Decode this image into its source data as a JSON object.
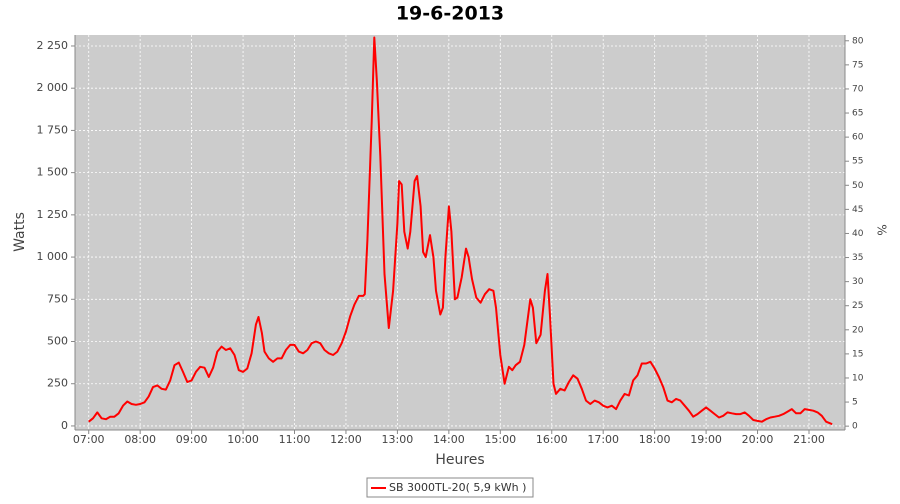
{
  "chart_data": {
    "type": "line",
    "title": "19-6-2013",
    "x_label": "Heures",
    "y_label": "Watts",
    "y2_label": "%",
    "x": [
      "07:00",
      "07:05",
      "07:10",
      "07:15",
      "07:20",
      "07:25",
      "07:30",
      "07:35",
      "07:40",
      "07:45",
      "07:50",
      "07:55",
      "08:00",
      "08:05",
      "08:10",
      "08:15",
      "08:20",
      "08:25",
      "08:30",
      "08:35",
      "08:40",
      "08:45",
      "08:50",
      "08:55",
      "09:00",
      "09:05",
      "09:10",
      "09:15",
      "09:20",
      "09:25",
      "09:30",
      "09:35",
      "09:40",
      "09:45",
      "09:50",
      "09:55",
      "10:00",
      "10:05",
      "10:10",
      "10:15",
      "10:18",
      "10:22",
      "10:25",
      "10:30",
      "10:35",
      "10:40",
      "10:45",
      "10:50",
      "10:55",
      "11:00",
      "11:05",
      "11:10",
      "11:15",
      "11:20",
      "11:25",
      "11:30",
      "11:35",
      "11:40",
      "11:45",
      "11:50",
      "11:55",
      "12:00",
      "12:05",
      "12:10",
      "12:15",
      "12:20",
      "12:22",
      "12:25",
      "12:30",
      "12:33",
      "12:36",
      "12:40",
      "12:45",
      "12:50",
      "12:55",
      "13:00",
      "13:02",
      "13:05",
      "13:08",
      "13:12",
      "13:15",
      "13:20",
      "13:23",
      "13:27",
      "13:30",
      "13:33",
      "13:38",
      "13:42",
      "13:45",
      "13:50",
      "13:53",
      "13:56",
      "14:00",
      "14:03",
      "14:07",
      "14:10",
      "14:15",
      "14:20",
      "14:23",
      "14:27",
      "14:32",
      "14:37",
      "14:42",
      "14:47",
      "14:52",
      "14:55",
      "15:00",
      "15:05",
      "15:10",
      "15:14",
      "15:18",
      "15:23",
      "15:28",
      "15:35",
      "15:38",
      "15:42",
      "15:47",
      "15:52",
      "15:55",
      "15:58",
      "16:02",
      "16:05",
      "16:10",
      "16:15",
      "16:20",
      "16:25",
      "16:30",
      "16:35",
      "16:40",
      "16:45",
      "16:50",
      "16:55",
      "17:00",
      "17:05",
      "17:10",
      "17:15",
      "17:20",
      "17:25",
      "17:30",
      "17:35",
      "17:40",
      "17:45",
      "17:50",
      "17:55",
      "18:00",
      "18:05",
      "18:10",
      "18:15",
      "18:20",
      "18:25",
      "18:30",
      "18:35",
      "18:40",
      "18:45",
      "18:50",
      "18:55",
      "19:00",
      "19:05",
      "19:10",
      "19:15",
      "19:20",
      "19:25",
      "19:30",
      "19:35",
      "19:40",
      "19:45",
      "19:50",
      "19:55",
      "20:00",
      "20:05",
      "20:10",
      "20:15",
      "20:20",
      "20:25",
      "20:30",
      "20:35",
      "20:40",
      "20:45",
      "20:50",
      "20:55",
      "21:00",
      "21:05",
      "21:10",
      "21:15",
      "21:20",
      "21:25",
      "21:27"
    ],
    "series": [
      {
        "name": "SB 3000TL-20( 5,9 kWh )",
        "color": "#ff0000",
        "values": [
          25,
          45,
          80,
          45,
          40,
          55,
          55,
          75,
          120,
          145,
          130,
          125,
          130,
          140,
          175,
          230,
          240,
          220,
          215,
          270,
          360,
          375,
          320,
          260,
          270,
          320,
          350,
          345,
          290,
          345,
          440,
          470,
          450,
          460,
          420,
          330,
          320,
          340,
          430,
          600,
          645,
          550,
          440,
          400,
          380,
          400,
          400,
          450,
          480,
          480,
          440,
          430,
          450,
          490,
          500,
          490,
          450,
          430,
          420,
          440,
          490,
          560,
          650,
          720,
          770,
          770,
          780,
          1100,
          1800,
          2300,
          2050,
          1600,
          900,
          580,
          800,
          1200,
          1450,
          1430,
          1150,
          1050,
          1150,
          1450,
          1480,
          1300,
          1030,
          1000,
          1130,
          1000,
          800,
          660,
          700,
          1000,
          1300,
          1150,
          750,
          760,
          880,
          1050,
          1000,
          870,
          760,
          730,
          780,
          810,
          800,
          700,
          420,
          250,
          350,
          330,
          360,
          380,
          480,
          750,
          700,
          490,
          540,
          800,
          900,
          650,
          250,
          190,
          220,
          210,
          260,
          300,
          280,
          220,
          150,
          130,
          150,
          140,
          120,
          110,
          120,
          100,
          150,
          190,
          180,
          270,
          300,
          370,
          370,
          380,
          340,
          290,
          230,
          150,
          140,
          160,
          150,
          120,
          90,
          55,
          70,
          90,
          110,
          90,
          70,
          50,
          60,
          80,
          75,
          70,
          70,
          80,
          60,
          35,
          30,
          25,
          40,
          50,
          55,
          60,
          70,
          85,
          100,
          75,
          75,
          100,
          95,
          90,
          80,
          60,
          25,
          15,
          10
        ]
      }
    ],
    "xlim": [
      "06:44",
      "21:42"
    ],
    "xticks": [
      "07:00",
      "08:00",
      "09:00",
      "10:00",
      "11:00",
      "12:00",
      "13:00",
      "14:00",
      "15:00",
      "16:00",
      "17:00",
      "18:00",
      "19:00",
      "20:00",
      "21:00"
    ],
    "ylim": [
      -24,
      2315
    ],
    "yticks": [
      0,
      250,
      500,
      750,
      {
        "value": 1000,
        "label": "1 000"
      },
      {
        "value": 1250,
        "label": "1 250"
      },
      {
        "value": 1500,
        "label": "1 500"
      },
      {
        "value": 1750,
        "label": "1 750"
      },
      {
        "value": 2000,
        "label": "2 000"
      },
      {
        "value": 2250,
        "label": "2 250"
      }
    ],
    "y2lim": [
      -0.8,
      81.2
    ],
    "y2ticks": [
      0,
      5,
      10,
      15,
      20,
      25,
      30,
      35,
      40,
      45,
      50,
      55,
      60,
      65,
      70,
      75,
      80
    ],
    "grid": true,
    "legend": "bottom"
  }
}
